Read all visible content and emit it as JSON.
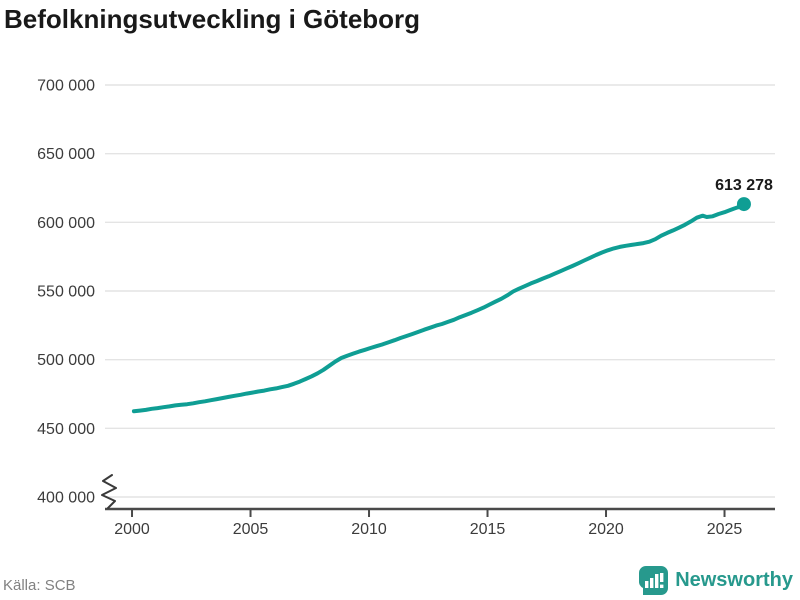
{
  "title": "Befolkningsutveckling i Göteborg",
  "source": "Källa: SCB",
  "branding": {
    "name": "Newsworthy",
    "icon": "newsworthy-chart-bubble-logo"
  },
  "colors": {
    "line": "#0f9e94",
    "dot": "#0f9e94",
    "grid": "#e4e4e4",
    "axis": "#4a4a4a",
    "tick_text": "#3c3c3c",
    "annotation_text": "#1a1a1a",
    "title_text": "#191919",
    "muted_text": "#818181",
    "brand": "#27998d"
  },
  "chart_data": {
    "type": "line",
    "title": "Befolkningsutveckling i Göteborg",
    "xlabel": "",
    "ylabel": "",
    "grid": "horizontal",
    "legend": "none",
    "axis_break_bottom_left": true,
    "xlim": [
      1998.86,
      2027.13
    ],
    "ylim": [
      400000,
      700000
    ],
    "x_ticks": [
      2000,
      2005,
      2010,
      2015,
      2020,
      2025
    ],
    "x_tick_labels": [
      "2000",
      "2005",
      "2010",
      "2015",
      "2020",
      "2025"
    ],
    "y_ticks": [
      400000,
      450000,
      500000,
      550000,
      600000,
      650000,
      700000
    ],
    "y_tick_labels": [
      "400 000",
      "450 000",
      "500 000",
      "550 000",
      "600 000",
      "650 000",
      "700 000"
    ],
    "end_label": "613 278",
    "end_value": 613278,
    "series": [
      {
        "name": "Befolkning i Göteborg",
        "points": [
          [
            2000.08,
            462500
          ],
          [
            2000.33,
            462900
          ],
          [
            2000.58,
            463400
          ],
          [
            2000.83,
            464200
          ],
          [
            2001.08,
            464700
          ],
          [
            2001.33,
            465400
          ],
          [
            2001.58,
            466000
          ],
          [
            2001.83,
            466700
          ],
          [
            2002.08,
            467100
          ],
          [
            2002.33,
            467600
          ],
          [
            2002.58,
            468200
          ],
          [
            2002.83,
            469000
          ],
          [
            2003.08,
            469700
          ],
          [
            2003.33,
            470500
          ],
          [
            2003.58,
            471300
          ],
          [
            2003.83,
            472100
          ],
          [
            2004.08,
            472900
          ],
          [
            2004.33,
            473700
          ],
          [
            2004.58,
            474400
          ],
          [
            2004.83,
            475300
          ],
          [
            2005.08,
            476000
          ],
          [
            2005.33,
            476800
          ],
          [
            2005.58,
            477500
          ],
          [
            2005.83,
            478400
          ],
          [
            2006.08,
            479100
          ],
          [
            2006.33,
            480000
          ],
          [
            2006.58,
            481000
          ],
          [
            2006.83,
            482400
          ],
          [
            2007.08,
            484000
          ],
          [
            2007.33,
            485900
          ],
          [
            2007.58,
            487900
          ],
          [
            2007.83,
            490100
          ],
          [
            2008.08,
            492600
          ],
          [
            2008.33,
            495600
          ],
          [
            2008.58,
            498700
          ],
          [
            2008.83,
            501200
          ],
          [
            2009.08,
            502900
          ],
          [
            2009.33,
            504400
          ],
          [
            2009.58,
            505900
          ],
          [
            2009.83,
            507200
          ],
          [
            2010.08,
            508600
          ],
          [
            2010.33,
            509900
          ],
          [
            2010.58,
            511200
          ],
          [
            2010.83,
            512700
          ],
          [
            2011.08,
            514200
          ],
          [
            2011.33,
            515800
          ],
          [
            2011.58,
            517200
          ],
          [
            2011.83,
            518700
          ],
          [
            2012.08,
            520200
          ],
          [
            2012.33,
            521800
          ],
          [
            2012.58,
            523300
          ],
          [
            2012.83,
            524800
          ],
          [
            2013.08,
            526000
          ],
          [
            2013.33,
            527500
          ],
          [
            2013.58,
            529000
          ],
          [
            2013.83,
            530900
          ],
          [
            2014.08,
            532500
          ],
          [
            2014.33,
            534200
          ],
          [
            2014.58,
            536000
          ],
          [
            2014.83,
            537900
          ],
          [
            2015.08,
            540100
          ],
          [
            2015.33,
            542200
          ],
          [
            2015.58,
            544300
          ],
          [
            2015.83,
            546800
          ],
          [
            2016.08,
            549600
          ],
          [
            2016.33,
            551700
          ],
          [
            2016.58,
            553600
          ],
          [
            2016.83,
            555500
          ],
          [
            2017.08,
            557200
          ],
          [
            2017.33,
            559000
          ],
          [
            2017.58,
            560700
          ],
          [
            2017.83,
            562600
          ],
          [
            2018.08,
            564400
          ],
          [
            2018.33,
            566300
          ],
          [
            2018.58,
            568200
          ],
          [
            2018.83,
            570200
          ],
          [
            2019.08,
            572200
          ],
          [
            2019.33,
            574200
          ],
          [
            2019.58,
            576200
          ],
          [
            2019.83,
            578000
          ],
          [
            2020.08,
            579600
          ],
          [
            2020.33,
            581000
          ],
          [
            2020.58,
            582100
          ],
          [
            2020.83,
            582900
          ],
          [
            2021.08,
            583600
          ],
          [
            2021.33,
            584200
          ],
          [
            2021.58,
            584900
          ],
          [
            2021.83,
            585900
          ],
          [
            2022.08,
            587700
          ],
          [
            2022.33,
            590300
          ],
          [
            2022.58,
            592300
          ],
          [
            2022.83,
            594100
          ],
          [
            2023.08,
            596100
          ],
          [
            2023.33,
            598200
          ],
          [
            2023.58,
            600700
          ],
          [
            2023.83,
            603400
          ],
          [
            2024.08,
            604800
          ],
          [
            2024.25,
            603900
          ],
          [
            2024.5,
            604400
          ],
          [
            2024.75,
            606100
          ],
          [
            2025.0,
            607400
          ],
          [
            2025.2,
            608700
          ],
          [
            2025.4,
            610000
          ],
          [
            2025.55,
            610900
          ],
          [
            2025.7,
            611600
          ],
          [
            2025.82,
            613278
          ]
        ]
      }
    ]
  }
}
